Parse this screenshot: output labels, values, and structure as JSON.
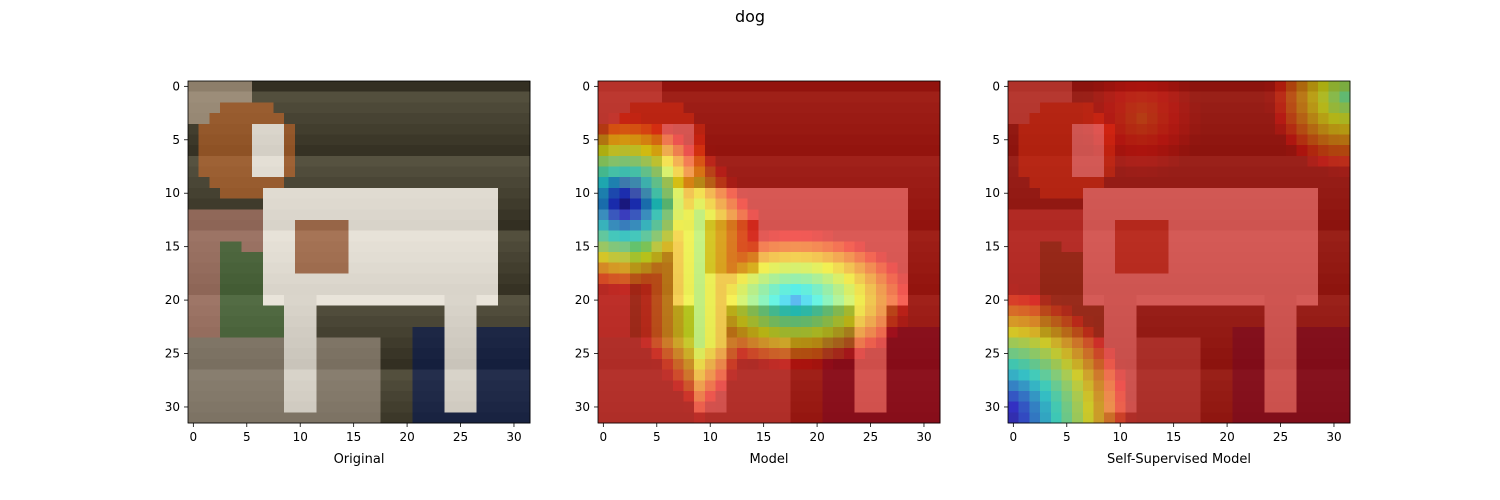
{
  "title": "dog",
  "chart_data": [
    {
      "type": "heatmap",
      "xlabel": "Original",
      "xlim": [
        -0.5,
        31.5
      ],
      "ylim": [
        31.5,
        -0.5
      ],
      "xticks": [
        "0",
        "5",
        "10",
        "15",
        "20",
        "25",
        "30"
      ],
      "yticks": [
        "0",
        "5",
        "10",
        "15",
        "20",
        "25",
        "30"
      ],
      "grid": false,
      "legend": "none",
      "content": "32x32 low-resolution photograph of a brown-and-white dog standing on a patterned floor, dark background"
    },
    {
      "type": "heatmap",
      "xlabel": "Model",
      "xlim": [
        -0.5,
        31.5
      ],
      "ylim": [
        31.5,
        -0.5
      ],
      "xticks": [
        "0",
        "5",
        "10",
        "15",
        "20",
        "25",
        "30"
      ],
      "yticks": [
        "0",
        "5",
        "10",
        "15",
        "20",
        "25",
        "30"
      ],
      "grid": false,
      "legend": "none",
      "colormap": "jet overlay",
      "hotspots": [
        {
          "row": 11,
          "col": 2,
          "level": 0.0
        },
        {
          "row": 20,
          "col": 18,
          "level": 0.25
        },
        {
          "row": 17,
          "col": 9,
          "level": 0.55
        }
      ]
    },
    {
      "type": "heatmap",
      "xlabel": "Self-Supervised Model",
      "xlim": [
        -0.5,
        31.5
      ],
      "ylim": [
        31.5,
        -0.5
      ],
      "xticks": [
        "0",
        "5",
        "10",
        "15",
        "20",
        "25",
        "30"
      ],
      "yticks": [
        "0",
        "5",
        "10",
        "15",
        "20",
        "25",
        "30"
      ],
      "grid": false,
      "legend": "none",
      "colormap": "jet overlay",
      "hotspots": [
        {
          "row": 31,
          "col": 0,
          "level": 0.0
        },
        {
          "row": 2,
          "col": 30,
          "level": 0.5
        },
        {
          "row": 3,
          "col": 12,
          "level": 0.85
        }
      ]
    }
  ]
}
